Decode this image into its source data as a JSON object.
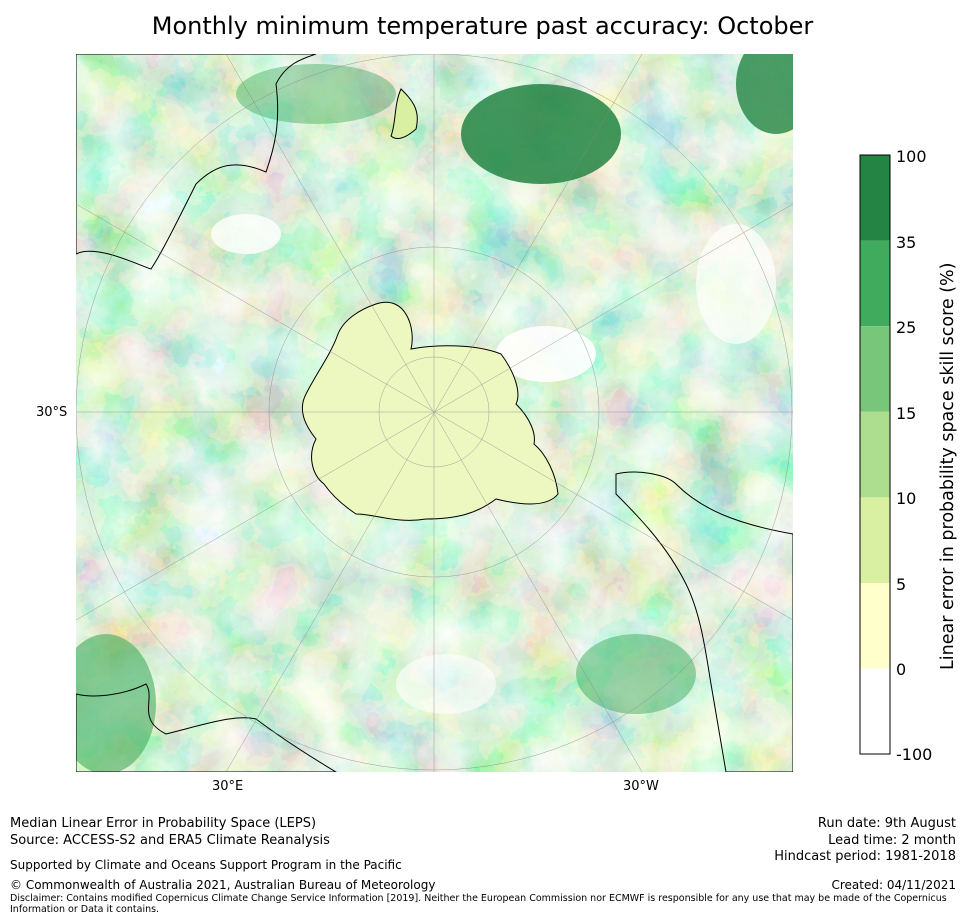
{
  "title": "Monthly minimum temperature past accuracy: October",
  "map": {
    "lat_label": "30°S",
    "lon_labels": [
      "30°E",
      "30°W"
    ],
    "colors": {
      "land": "#000000",
      "grid": "#888888"
    }
  },
  "colorbar": {
    "title": "Linear error in probability space skill score (%)",
    "tick_labels": [
      "100",
      "35",
      "25",
      "15",
      "10",
      "5",
      "0",
      "-100"
    ],
    "colors": [
      "#238443",
      "#41ab5d",
      "#78c679",
      "#addd8e",
      "#d9f0a3",
      "#ffffcc",
      "#ffffff"
    ]
  },
  "footer": {
    "line1": "Median Linear Error in Probability Space (LEPS)",
    "line2": "Source: ACCESS-S2 and ERA5 Climate Reanalysis",
    "support": "Supported by Climate and Oceans Support Program in the Pacific",
    "copyright": "© Commonwealth of Australia 2021, Australian Bureau of Meteorology",
    "disclaimer1": "Disclaimer: Contains modified Copernicus Climate Change Service Information [2019]. Neither the European Commission nor ECMWF is responsible for any use that may be made of the Copernicus",
    "disclaimer2": "Information or Data it contains.",
    "run_date": "Run date: 9th August",
    "lead_time": "Lead time: 2 month",
    "hindcast": "Hindcast period: 1981-2018",
    "created": "Created: 04/11/2021"
  }
}
